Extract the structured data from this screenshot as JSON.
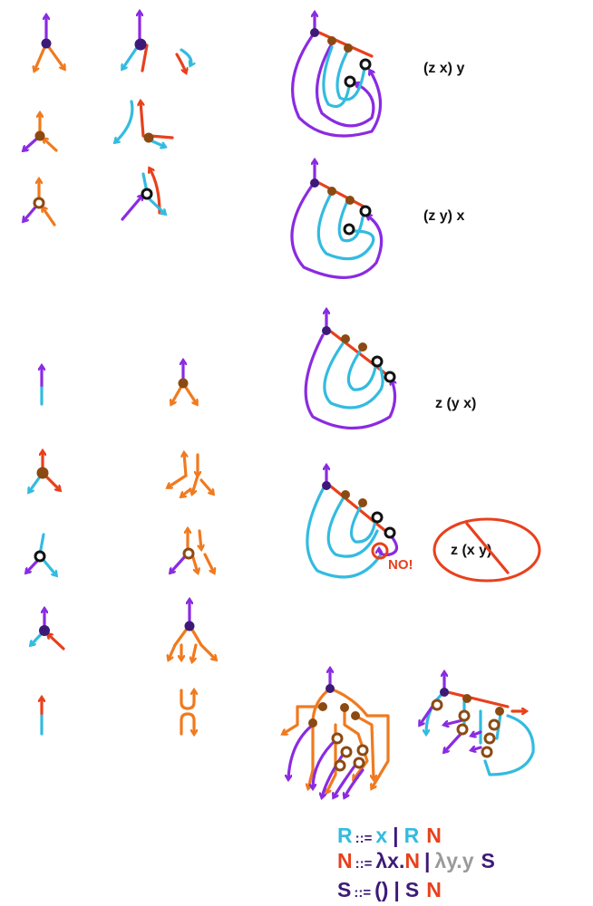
{
  "colors": {
    "purple": "#8a2be2",
    "orange": "#f07a1e",
    "red": "#e8401c",
    "cyan": "#33bbe0",
    "brown": "#8b4a12",
    "navy": "#3d1a78",
    "black": "#111111",
    "gray": "#9a9a9a"
  },
  "labels": {
    "zx_y": "(z x) y",
    "zy_x": "(z y) x",
    "z_yx": "z (y x)",
    "z_xy": "z (x y)",
    "no": "NO!"
  },
  "grammar": {
    "line1": {
      "r1": "R",
      "op": "::=",
      "x": "x",
      "bar": "|",
      "r2": "R",
      "n": "N"
    },
    "line2": {
      "n": "N",
      "op": "::=",
      "lx": "λx.",
      "n2": "N",
      "bar": "|",
      "ly": "λy.y",
      "s": "S"
    },
    "line3": {
      "s": "S",
      "op": "::=",
      "unit": "()",
      "bar": "|",
      "s2": "S",
      "n": "N"
    }
  }
}
